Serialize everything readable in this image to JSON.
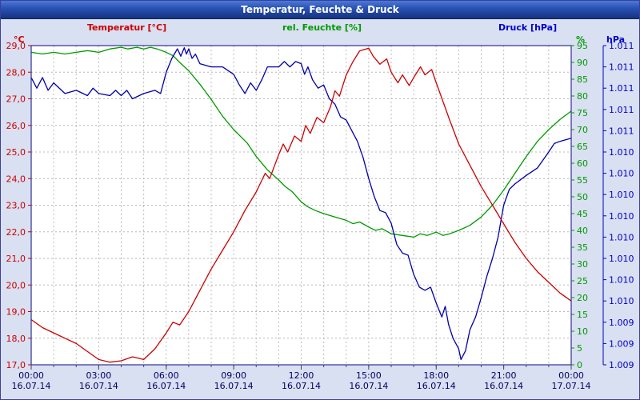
{
  "window": {
    "title": "Temperatur, Feuchte & Druck"
  },
  "chart_data": {
    "type": "line",
    "title": "Temperatur, Feuchte & Druck",
    "plot_bg": "#ffffff",
    "frame_color": "#2e3192",
    "grid": {
      "color": "#b8b8b8",
      "style": "dashed",
      "vertical_every_hours": 1
    },
    "x_axis": {
      "range_hours": [
        0,
        24
      ],
      "tick_labels": [
        "00:00",
        "03:00",
        "06:00",
        "09:00",
        "12:00",
        "15:00",
        "18:00",
        "21:00",
        "00:00"
      ],
      "date_labels": [
        "16.07.14",
        "16.07.14",
        "16.07.14",
        "16.07.14",
        "16.07.14",
        "16.07.14",
        "16.07.14",
        "16.07.14",
        "17.07.14"
      ],
      "label_color": "#000066"
    },
    "axes": {
      "temperature": {
        "title": "Temperatur [°C]",
        "unit": "°C",
        "color": "#cc0000",
        "min": 17,
        "max": 29,
        "position": "left",
        "tick_labels": [
          "29,0",
          "28,0",
          "27,0",
          "26,0",
          "25,0",
          "24,0",
          "23,0",
          "22,0",
          "21,0",
          "20,0",
          "19,0",
          "18,0",
          "17,0"
        ]
      },
      "humidity": {
        "title": "rel. Feuchte [%]",
        "unit": "%",
        "color": "#009900",
        "min": 0,
        "max": 95,
        "position": "right-inner",
        "tick_labels": [
          "95",
          "90",
          "85",
          "80",
          "75",
          "70",
          "65",
          "60",
          "55",
          "50",
          "45",
          "40",
          "35",
          "30",
          "25",
          "20",
          "15",
          "10",
          "5",
          "0"
        ]
      },
      "pressure": {
        "title": "Druck [hPa]",
        "unit": "hPa",
        "color": "#0000cc",
        "min": 1008.6,
        "max": 1011.6,
        "position": "right-outer",
        "tick_labels": [
          "1.011",
          "1.011",
          "1.011",
          "1.011",
          "1.011",
          "1.010",
          "1.010",
          "1.010",
          "1.010",
          "1.010",
          "1.010",
          "1.010",
          "1.010",
          "1.009",
          "1.009",
          "1.009"
        ]
      }
    },
    "series": [
      {
        "name": "Temperatur",
        "unit": "°C",
        "axis": "temperature",
        "color": "#cc0000",
        "points": [
          [
            0,
            18.7
          ],
          [
            0.5,
            18.4
          ],
          [
            1,
            18.2
          ],
          [
            1.5,
            18.0
          ],
          [
            2,
            17.8
          ],
          [
            2.5,
            17.5
          ],
          [
            3,
            17.2
          ],
          [
            3.5,
            17.1
          ],
          [
            4,
            17.15
          ],
          [
            4.5,
            17.3
          ],
          [
            5,
            17.2
          ],
          [
            5.5,
            17.6
          ],
          [
            6,
            18.2
          ],
          [
            6.3,
            18.6
          ],
          [
            6.6,
            18.5
          ],
          [
            7,
            19.0
          ],
          [
            7.5,
            19.8
          ],
          [
            8,
            20.6
          ],
          [
            8.5,
            21.3
          ],
          [
            9,
            22.0
          ],
          [
            9.5,
            22.8
          ],
          [
            10,
            23.5
          ],
          [
            10.4,
            24.2
          ],
          [
            10.6,
            24.0
          ],
          [
            11,
            24.9
          ],
          [
            11.2,
            25.3
          ],
          [
            11.4,
            25.0
          ],
          [
            11.7,
            25.6
          ],
          [
            12,
            25.4
          ],
          [
            12.2,
            26.0
          ],
          [
            12.4,
            25.7
          ],
          [
            12.7,
            26.3
          ],
          [
            13,
            26.1
          ],
          [
            13.3,
            26.7
          ],
          [
            13.5,
            27.3
          ],
          [
            13.7,
            27.1
          ],
          [
            14,
            27.9
          ],
          [
            14.3,
            28.4
          ],
          [
            14.6,
            28.8
          ],
          [
            15,
            28.9
          ],
          [
            15.2,
            28.6
          ],
          [
            15.5,
            28.3
          ],
          [
            15.8,
            28.5
          ],
          [
            16,
            28.0
          ],
          [
            16.3,
            27.6
          ],
          [
            16.5,
            27.9
          ],
          [
            16.8,
            27.5
          ],
          [
            17,
            27.8
          ],
          [
            17.3,
            28.2
          ],
          [
            17.5,
            27.9
          ],
          [
            17.8,
            28.1
          ],
          [
            18,
            27.6
          ],
          [
            18.3,
            26.9
          ],
          [
            18.6,
            26.2
          ],
          [
            19,
            25.3
          ],
          [
            19.5,
            24.5
          ],
          [
            20,
            23.7
          ],
          [
            20.5,
            23.0
          ],
          [
            21,
            22.3
          ],
          [
            21.5,
            21.6
          ],
          [
            22,
            21.0
          ],
          [
            22.5,
            20.5
          ],
          [
            23,
            20.1
          ],
          [
            23.5,
            19.7
          ],
          [
            24,
            19.4
          ]
        ]
      },
      {
        "name": "rel. Feuchte",
        "unit": "%",
        "axis": "humidity",
        "color": "#009900",
        "points": [
          [
            0,
            93
          ],
          [
            0.5,
            92.5
          ],
          [
            1,
            93
          ],
          [
            1.5,
            92.5
          ],
          [
            2,
            93
          ],
          [
            2.5,
            93.5
          ],
          [
            3,
            93
          ],
          [
            3.5,
            94
          ],
          [
            4,
            94.5
          ],
          [
            4.3,
            94
          ],
          [
            4.7,
            94.5
          ],
          [
            5,
            94
          ],
          [
            5.3,
            94.5
          ],
          [
            5.6,
            94
          ],
          [
            6,
            93
          ],
          [
            6.3,
            92
          ],
          [
            6.6,
            90
          ],
          [
            7,
            87.5
          ],
          [
            7.5,
            83.5
          ],
          [
            8,
            79
          ],
          [
            8.5,
            74
          ],
          [
            9,
            70
          ],
          [
            9.3,
            68
          ],
          [
            9.6,
            66
          ],
          [
            10,
            62
          ],
          [
            10.5,
            58
          ],
          [
            11,
            55
          ],
          [
            11.3,
            53
          ],
          [
            11.6,
            51.5
          ],
          [
            12,
            48.5
          ],
          [
            12.3,
            47
          ],
          [
            12.6,
            46
          ],
          [
            13,
            45
          ],
          [
            13.5,
            44
          ],
          [
            14,
            43
          ],
          [
            14.3,
            42
          ],
          [
            14.6,
            42.5
          ],
          [
            15,
            41
          ],
          [
            15.3,
            40
          ],
          [
            15.6,
            40.5
          ],
          [
            16,
            39
          ],
          [
            16.5,
            38.5
          ],
          [
            17,
            38
          ],
          [
            17.3,
            39
          ],
          [
            17.6,
            38.5
          ],
          [
            18,
            39.5
          ],
          [
            18.3,
            38.5
          ],
          [
            18.6,
            39
          ],
          [
            19,
            40
          ],
          [
            19.5,
            41.5
          ],
          [
            20,
            44
          ],
          [
            20.5,
            47.5
          ],
          [
            21,
            52
          ],
          [
            21.5,
            57
          ],
          [
            22,
            62
          ],
          [
            22.5,
            66.5
          ],
          [
            23,
            70
          ],
          [
            23.5,
            73
          ],
          [
            24,
            75.5
          ]
        ]
      },
      {
        "name": "Druck",
        "unit": "hPa",
        "axis": "pressure",
        "color": "#0000aa",
        "points": [
          [
            0,
            1011.3
          ],
          [
            0.25,
            1011.2
          ],
          [
            0.5,
            1011.3
          ],
          [
            0.75,
            1011.18
          ],
          [
            1,
            1011.25
          ],
          [
            1.5,
            1011.15
          ],
          [
            2,
            1011.18
          ],
          [
            2.5,
            1011.13
          ],
          [
            2.75,
            1011.2
          ],
          [
            3,
            1011.15
          ],
          [
            3.5,
            1011.13
          ],
          [
            3.75,
            1011.18
          ],
          [
            4,
            1011.13
          ],
          [
            4.25,
            1011.18
          ],
          [
            4.5,
            1011.1
          ],
          [
            5,
            1011.15
          ],
          [
            5.5,
            1011.18
          ],
          [
            5.75,
            1011.15
          ],
          [
            6,
            1011.35
          ],
          [
            6.25,
            1011.48
          ],
          [
            6.5,
            1011.57
          ],
          [
            6.65,
            1011.5
          ],
          [
            6.8,
            1011.58
          ],
          [
            6.9,
            1011.52
          ],
          [
            7,
            1011.57
          ],
          [
            7.15,
            1011.48
          ],
          [
            7.3,
            1011.52
          ],
          [
            7.5,
            1011.43
          ],
          [
            8,
            1011.4
          ],
          [
            8.5,
            1011.4
          ],
          [
            9,
            1011.33
          ],
          [
            9.25,
            1011.23
          ],
          [
            9.5,
            1011.15
          ],
          [
            9.75,
            1011.25
          ],
          [
            10,
            1011.18
          ],
          [
            10.25,
            1011.28
          ],
          [
            10.5,
            1011.4
          ],
          [
            11,
            1011.4
          ],
          [
            11.25,
            1011.45
          ],
          [
            11.5,
            1011.4
          ],
          [
            11.75,
            1011.45
          ],
          [
            12,
            1011.43
          ],
          [
            12.15,
            1011.33
          ],
          [
            12.3,
            1011.4
          ],
          [
            12.5,
            1011.28
          ],
          [
            12.75,
            1011.2
          ],
          [
            13,
            1011.23
          ],
          [
            13.25,
            1011.1
          ],
          [
            13.5,
            1011.05
          ],
          [
            13.75,
            1010.93
          ],
          [
            14,
            1010.9
          ],
          [
            14.25,
            1010.8
          ],
          [
            14.5,
            1010.7
          ],
          [
            14.75,
            1010.55
          ],
          [
            15,
            1010.35
          ],
          [
            15.25,
            1010.18
          ],
          [
            15.5,
            1010.05
          ],
          [
            15.75,
            1010.03
          ],
          [
            16,
            1009.93
          ],
          [
            16.25,
            1009.73
          ],
          [
            16.5,
            1009.65
          ],
          [
            16.75,
            1009.63
          ],
          [
            17,
            1009.45
          ],
          [
            17.25,
            1009.33
          ],
          [
            17.5,
            1009.3
          ],
          [
            17.75,
            1009.33
          ],
          [
            18,
            1009.18
          ],
          [
            18.25,
            1009.05
          ],
          [
            18.4,
            1009.15
          ],
          [
            18.55,
            1008.98
          ],
          [
            18.75,
            1008.85
          ],
          [
            19,
            1008.75
          ],
          [
            19.1,
            1008.65
          ],
          [
            19.3,
            1008.73
          ],
          [
            19.5,
            1008.93
          ],
          [
            19.75,
            1009.05
          ],
          [
            20,
            1009.23
          ],
          [
            20.25,
            1009.43
          ],
          [
            20.5,
            1009.6
          ],
          [
            20.75,
            1009.8
          ],
          [
            21,
            1010.1
          ],
          [
            21.25,
            1010.25
          ],
          [
            21.5,
            1010.3
          ],
          [
            22,
            1010.38
          ],
          [
            22.5,
            1010.45
          ],
          [
            23,
            1010.6
          ],
          [
            23.25,
            1010.68
          ],
          [
            23.5,
            1010.7
          ],
          [
            24,
            1010.73
          ]
        ]
      }
    ]
  }
}
